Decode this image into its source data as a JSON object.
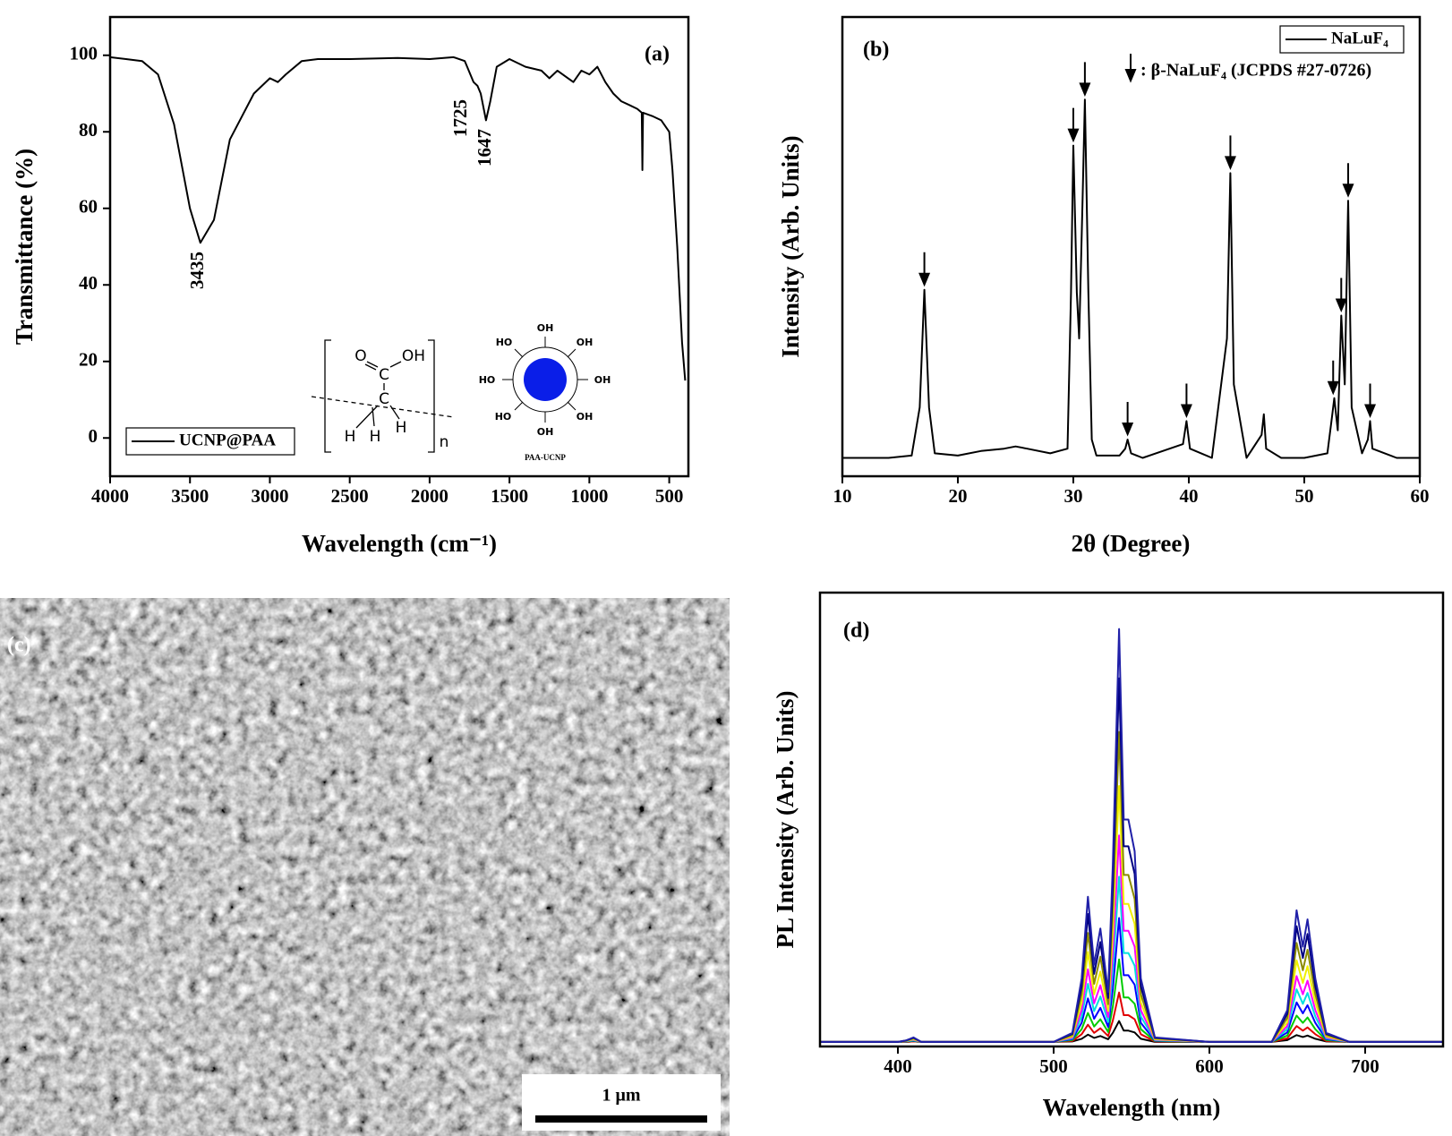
{
  "chart_data": [
    {
      "type": "line",
      "title": "(a)",
      "x_label": "Wavelength (cm⁻¹)",
      "y_label": "Transmittance (%)",
      "x": [
        4000,
        3900,
        3800,
        3700,
        3600,
        3500,
        3435,
        3350,
        3250,
        3100,
        3000,
        2950,
        2900,
        2800,
        2700,
        2500,
        2200,
        2000,
        1850,
        1780,
        1725,
        1700,
        1680,
        1647,
        1620,
        1580,
        1500,
        1400,
        1300,
        1250,
        1200,
        1100,
        1050,
        1000,
        950,
        900,
        850,
        800,
        750,
        700,
        672,
        668,
        664,
        600,
        550,
        500,
        480,
        450,
        420,
        400
      ],
      "series": [
        {
          "name": "UCNP@PAA",
          "color": "#000000",
          "values": [
            99.5,
            99,
            98.5,
            95,
            82,
            60,
            51,
            57,
            78,
            90,
            94,
            93,
            95,
            98.5,
            99,
            99,
            99.3,
            99,
            99.5,
            98.5,
            93,
            92,
            90,
            83,
            88,
            97,
            99,
            97,
            96,
            94,
            96,
            93,
            96,
            95,
            97,
            93,
            90,
            88,
            87,
            86,
            85,
            70,
            85,
            84,
            83,
            80,
            70,
            50,
            25,
            15
          ]
        }
      ],
      "xlim": [
        4000,
        380
      ],
      "ylim": [
        -10,
        110
      ],
      "xticks": [
        4000,
        3500,
        3000,
        2500,
        2000,
        1500,
        1000,
        500
      ],
      "yticks": [
        0,
        20,
        40,
        60,
        80,
        100
      ],
      "legend": "lower left",
      "peak_labels": [
        "3435",
        "1725",
        "1647"
      ],
      "inset_texts": {
        "carbon": "C",
        "oxygen": "O",
        "hydrogen": "H",
        "hydroxyl": "OH",
        "hydroxyl_left": "HO",
        "repeat": "n",
        "particle": "PAA-UCNP"
      }
    },
    {
      "type": "line",
      "title": "(b)",
      "x_label": "2θ (Degree)",
      "y_label": "Intensity (Arb. Units)",
      "x": [
        10,
        12,
        14,
        16,
        16.7,
        17.1,
        17.5,
        18,
        20,
        22,
        24,
        25,
        26,
        28,
        29.5,
        29.8,
        30,
        30.3,
        30.5,
        30.8,
        31,
        31.3,
        31.6,
        32,
        34,
        34.5,
        34.7,
        35,
        36,
        39.5,
        39.8,
        40.1,
        42,
        43.3,
        43.6,
        43.9,
        45,
        46.3,
        46.5,
        46.7,
        48,
        50,
        52,
        52.4,
        52.6,
        52.9,
        53.2,
        53.5,
        53.8,
        54.1,
        55,
        55.5,
        55.7,
        55.9,
        58,
        60
      ],
      "series": [
        {
          "name": "NaLuF₄",
          "color": "#000000",
          "values": [
            4,
            4,
            4,
            4.5,
            15,
            40.6,
            15,
            5,
            4.5,
            5.5,
            6,
            6.5,
            6,
            5,
            6,
            40,
            72,
            40,
            30,
            60,
            82,
            40,
            8,
            4.5,
            4.5,
            6,
            8,
            5,
            4,
            7,
            12,
            6,
            4,
            30,
            66,
            20,
            4,
            9,
            13.5,
            6,
            4,
            4,
            5,
            13,
            17,
            10,
            35,
            20,
            60,
            15,
            5,
            8,
            12,
            6,
            4,
            4
          ]
        }
      ],
      "xlim": [
        10,
        60
      ],
      "ylim": [
        0,
        100
      ],
      "xticks": [
        10,
        20,
        30,
        40,
        50,
        60
      ],
      "legend": "upper right",
      "marker_label": ": β-NaLuF₄ (JCPDS #27-0726)",
      "peak_markers": {
        "x": [
          17.1,
          30,
          31,
          34.7,
          39.8,
          43.6,
          52.5,
          53.2,
          53.8,
          55.7
        ],
        "y": [
          40.6,
          72,
          82,
          8,
          12,
          66,
          17,
          35,
          60,
          12
        ]
      }
    },
    {
      "type": "line",
      "title": "(d)",
      "x_label": "Wavelength (nm)",
      "y_label": "PL Intensity (Arb. Units)",
      "x": [
        350,
        400,
        405,
        410,
        415,
        500,
        512,
        518,
        522,
        526,
        530,
        535,
        538,
        542,
        545,
        548,
        552,
        556,
        565,
        600,
        640,
        650,
        656,
        660,
        663,
        668,
        675,
        690,
        750
      ],
      "series": [
        {
          "color": "#000000",
          "values": [
            1,
            1,
            1,
            1.1,
            1,
            1,
            1.1,
            1.7,
            2.6,
            1.9,
            2.3,
            1.6,
            3,
            5.6,
            3.5,
            3.5,
            3.1,
            1.7,
            1,
            1,
            1,
            1.4,
            2.5,
            2.1,
            2.4,
            1.7,
            1.1,
            1,
            1
          ]
        },
        {
          "color": "#e00000",
          "values": [
            1,
            1,
            1,
            1.1,
            1,
            1,
            1.2,
            2.7,
            4.8,
            3,
            4,
            2.3,
            5.7,
            11.9,
            6.9,
            6.9,
            6,
            2.7,
            1.1,
            1,
            1,
            1.8,
            4.5,
            3.5,
            4.2,
            2.7,
            1.2,
            1,
            1
          ]
        },
        {
          "color": "#00cc00",
          "values": [
            1,
            1,
            1.1,
            1.2,
            1,
            1,
            1.4,
            3.8,
            7.4,
            4.4,
            6,
            3.2,
            8.8,
            19.2,
            10.8,
            10.8,
            9.4,
            3.8,
            1.2,
            1,
            1,
            2.4,
            6.8,
            5.2,
            6.4,
            3.8,
            1.4,
            1,
            1
          ]
        },
        {
          "color": "#0000ff",
          "values": [
            1,
            1,
            1.1,
            1.3,
            1,
            1,
            1.6,
            5.2,
            10.6,
            6.1,
            8.5,
            4.3,
            12.7,
            28.3,
            15.7,
            15.7,
            13.6,
            5.2,
            1.3,
            1,
            1,
            3.1,
            9.7,
            7.3,
            9.1,
            5.2,
            1.6,
            1,
            1
          ]
        },
        {
          "color": "#00e0e0",
          "values": [
            1,
            1,
            1.1,
            1.4,
            1,
            1,
            1.8,
            6.6,
            13.8,
            7.8,
            11,
            5.4,
            16.6,
            37.4,
            20.6,
            20.6,
            17.8,
            6.6,
            1.4,
            1,
            1,
            3.8,
            12.6,
            9.4,
            11.8,
            6.6,
            1.8,
            1,
            1
          ]
        },
        {
          "color": "#ff00ff",
          "values": [
            1,
            1,
            1.2,
            1.5,
            1,
            1,
            2,
            8,
            17,
            9.5,
            13.5,
            6.5,
            20.5,
            46.5,
            25.5,
            25.5,
            22,
            8,
            1.5,
            1,
            1,
            4.5,
            15.5,
            11.5,
            14.5,
            8,
            2,
            1,
            1
          ]
        },
        {
          "color": "#f0f000",
          "values": [
            1,
            1,
            1.2,
            1.6,
            1,
            1,
            2.2,
            9.7,
            20.8,
            11.5,
            16.5,
            7.8,
            25.2,
            57.4,
            31.4,
            31.4,
            27,
            9.7,
            1.6,
            1,
            1,
            5.3,
            19,
            14,
            17.7,
            9.7,
            2.2,
            1,
            1
          ]
        },
        {
          "color": "#8b8b00",
          "values": [
            1,
            1,
            1.2,
            1.8,
            1,
            1,
            2.5,
            11.5,
            25,
            13.8,
            19.8,
            9.3,
            30.3,
            69.3,
            37.8,
            37.8,
            32.5,
            11.5,
            1.8,
            1,
            1,
            6.3,
            22.8,
            16.8,
            21.3,
            11.5,
            2.5,
            1,
            1
          ]
        },
        {
          "color": "#000080",
          "values": [
            1,
            1,
            1.3,
            1.9,
            1,
            1,
            2.8,
            13.3,
            29.2,
            16,
            23,
            10.7,
            35.3,
            81.1,
            44.1,
            44.1,
            38,
            13.3,
            1.9,
            1,
            1,
            7.2,
            26.5,
            19.5,
            24.8,
            13.3,
            2.8,
            1,
            1
          ]
        },
        {
          "color": "#2020a8",
          "values": [
            1,
            1,
            1.3,
            2,
            1,
            1,
            3,
            15,
            33,
            18,
            26,
            12,
            40,
            92,
            50,
            50,
            43,
            15,
            2,
            1,
            1,
            8,
            30,
            22,
            28,
            15,
            3,
            1,
            1
          ]
        }
      ],
      "xlim": [
        350,
        750
      ],
      "ylim": [
        0,
        100
      ],
      "xticks": [
        400,
        500,
        600,
        700
      ]
    }
  ],
  "image_panel": {
    "label": "(c)",
    "scale_bar": "1 μm"
  }
}
